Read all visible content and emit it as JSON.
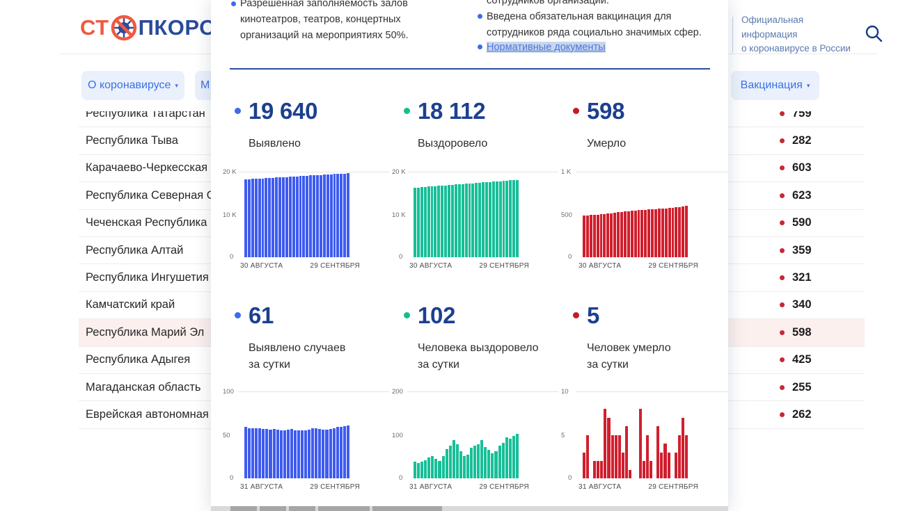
{
  "header": {
    "logo_prefix": "СТ",
    "logo_suffix": "ПКОРОНАВИ",
    "logo_icon": "no-virus-icon",
    "info_line1": "Официальная информация",
    "info_line2": "о коронавирусе в России"
  },
  "nav": {
    "tabs": [
      {
        "label": "О коронавирусе",
        "arrow": "▾"
      },
      {
        "label": "М",
        "arrow": ""
      },
      {
        "label": "Вакцинация",
        "arrow": "▾"
      }
    ]
  },
  "regions": {
    "rows": [
      {
        "name": "Республика Татарстан",
        "value": "759",
        "highlighted": false
      },
      {
        "name": "Республика Тыва",
        "value": "282",
        "highlighted": false
      },
      {
        "name": "Карачаево-Черкесская Ре",
        "value": "603",
        "highlighted": false
      },
      {
        "name": "Республика Северная Осе",
        "value": "623",
        "highlighted": false
      },
      {
        "name": "Чеченская Республика",
        "value": "590",
        "highlighted": false
      },
      {
        "name": "Республика Алтай",
        "value": "359",
        "highlighted": false
      },
      {
        "name": "Республика Ингушетия",
        "value": "321",
        "highlighted": false
      },
      {
        "name": "Камчатский край",
        "value": "340",
        "highlighted": false
      },
      {
        "name": "Республика Марий Эл",
        "value": "598",
        "highlighted": true
      },
      {
        "name": "Республика Адыгея",
        "value": "425",
        "highlighted": false
      },
      {
        "name": "Магаданская область",
        "value": "255",
        "highlighted": false
      },
      {
        "name": "Еврейская автономная об",
        "value": "262",
        "highlighted": false
      }
    ]
  },
  "modal": {
    "bullets_left": [
      "Разрешенная заполняемость залов",
      "кинотеатров, театров, концертных",
      "организаций на мероприятиях 50%."
    ],
    "bullets_right_partial": "сотрудников организаций.",
    "bullets_right": [
      "Введена обязательная вакцинация для",
      "сотрудников ряда социально значимых сфер."
    ],
    "link_label": "Нормативные документы",
    "stats1": [
      {
        "value": "19 640",
        "label": "Выявлено",
        "dot": "#3e6be8"
      },
      {
        "value": "18 112",
        "label": "Выздоровело",
        "dot": "#10c08e"
      },
      {
        "value": "598",
        "label": "Умерло",
        "dot": "#c41a24"
      }
    ],
    "stats2": [
      {
        "value": "61",
        "label1": "Выявлено случаев",
        "label2": "за сутки",
        "dot": "#3e6be8"
      },
      {
        "value": "102",
        "label1": "Человека выздоровело",
        "label2": "за сутки",
        "dot": "#10c08e"
      },
      {
        "value": "5",
        "label1": "Человек умерло",
        "label2": "за сутки",
        "dot": "#c41a24"
      }
    ]
  },
  "chart_data": [
    {
      "id": "confirmed-total",
      "type": "bar",
      "color": "#3e5bf0",
      "ymax": 20000,
      "yticks": [
        "20 K",
        "10 K",
        "0"
      ],
      "x_start": "30 АВГУСТА",
      "x_end": "29 СЕНТЯБРЯ",
      "values": [
        18200,
        18248,
        18296,
        18344,
        18392,
        18440,
        18488,
        18536,
        18584,
        18632,
        18680,
        18728,
        18776,
        18824,
        18872,
        18920,
        18968,
        19016,
        19064,
        19112,
        19160,
        19208,
        19256,
        19304,
        19352,
        19400,
        19448,
        19496,
        19544,
        19592,
        19640
      ]
    },
    {
      "id": "recovered-total",
      "type": "bar",
      "color": "#17bf98",
      "ymax": 20000,
      "yticks": [
        "20 K",
        "10 K",
        "0"
      ],
      "x_start": "30 АВГУСТА",
      "x_end": "29 СЕНТЯБРЯ",
      "values": [
        16260,
        16322,
        16384,
        16445,
        16507,
        16569,
        16631,
        16692,
        16754,
        16816,
        16878,
        16939,
        17001,
        17063,
        17125,
        17186,
        17248,
        17310,
        17372,
        17433,
        17495,
        17557,
        17619,
        17680,
        17742,
        17804,
        17866,
        17927,
        17989,
        18051,
        18112
      ]
    },
    {
      "id": "deaths-total",
      "type": "bar",
      "color": "#d01f2e",
      "ymax": 1000,
      "yticks": [
        "1 K",
        "500",
        "0"
      ],
      "x_start": "30 АВГУСТА",
      "x_end": "29 СЕНТЯБРЯ",
      "values": [
        487,
        490,
        493,
        496,
        499,
        502,
        506,
        511,
        516,
        521,
        526,
        531,
        535,
        539,
        543,
        546,
        549,
        552,
        555,
        558,
        561,
        564,
        567,
        570,
        573,
        577,
        581,
        585,
        589,
        593,
        598
      ]
    },
    {
      "id": "confirmed-daily",
      "type": "bar",
      "color": "#3e5bf0",
      "ymax": 100,
      "yticks": [
        "100",
        "50",
        "0"
      ],
      "x_start": "31 АВГУСТА",
      "x_end": "29 СЕНТЯБРЯ",
      "values": [
        59,
        58,
        58,
        58,
        58,
        57,
        57,
        56,
        57,
        56,
        55,
        55,
        56,
        57,
        55,
        55,
        55,
        55,
        56,
        58,
        58,
        57,
        56,
        56,
        57,
        58,
        59,
        59,
        60,
        61
      ]
    },
    {
      "id": "recovered-daily",
      "type": "bar",
      "color": "#17bf98",
      "ymax": 200,
      "yticks": [
        "200",
        "100",
        "0"
      ],
      "x_start": "31 АВГУСТА",
      "x_end": "29 СЕНТЯБРЯ",
      "values": [
        38,
        35,
        38,
        42,
        48,
        52,
        45,
        40,
        52,
        68,
        75,
        88,
        78,
        62,
        52,
        55,
        70,
        75,
        78,
        88,
        72,
        65,
        58,
        62,
        75,
        82,
        95,
        92,
        97,
        102
      ]
    },
    {
      "id": "deaths-daily",
      "type": "bar",
      "color": "#d01f2e",
      "ymax": 10,
      "yticks": [
        "10",
        "5",
        "0"
      ],
      "x_start": "31 АВГУСТА",
      "x_end": "29 СЕНТЯБРЯ",
      "values": [
        3,
        5,
        0,
        2,
        2,
        2,
        8,
        7,
        5,
        5,
        5,
        3,
        6,
        1,
        0,
        0,
        8,
        2,
        5,
        2,
        0,
        6,
        3,
        4,
        3,
        0,
        3,
        5,
        7,
        5
      ]
    }
  ],
  "colors": {
    "accent_navy": "#1c3f90",
    "bar_blue": "#3e5bf0",
    "bar_green": "#17bf98",
    "bar_red": "#d01f2e",
    "highlight_row": "#fbf0ee"
  }
}
